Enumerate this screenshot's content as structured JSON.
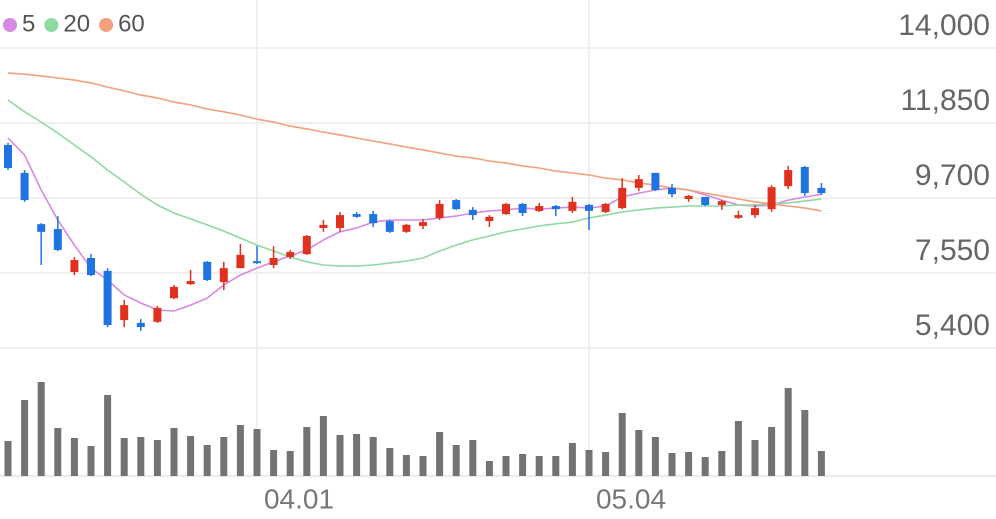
{
  "chart_data": {
    "type": "candlestick",
    "categories": [
      null,
      null,
      null,
      null,
      null,
      null,
      null,
      null,
      null,
      null,
      null,
      null,
      null,
      null,
      null,
      "04.01",
      null,
      null,
      null,
      null,
      null,
      null,
      null,
      null,
      null,
      null,
      null,
      null,
      null,
      null,
      null,
      null,
      null,
      null,
      null,
      "05.04",
      null,
      null,
      null,
      null,
      null,
      null,
      null,
      null,
      null,
      null,
      null,
      null,
      null,
      null
    ],
    "open": [
      11220,
      10420,
      8950,
      8810,
      7580,
      7980,
      7610,
      6200,
      6120,
      6150,
      6830,
      7230,
      7870,
      7290,
      7690,
      7890,
      7780,
      8010,
      8090,
      8840,
      8840,
      9240,
      9240,
      9040,
      8730,
      8900,
      9130,
      9640,
      9360,
      9040,
      9240,
      9530,
      9330,
      9470,
      9330,
      9500,
      9300,
      9410,
      9990,
      10420,
      9990,
      9670,
      9730,
      9500,
      9130,
      9210,
      9380,
      10040,
      10590,
      9990
    ],
    "high": [
      11280,
      10500,
      8980,
      9180,
      8010,
      8100,
      7690,
      6780,
      6230,
      6610,
      7210,
      7640,
      7890,
      7870,
      8380,
      8320,
      8320,
      8210,
      8640,
      9070,
      9300,
      9300,
      9330,
      9070,
      8960,
      9100,
      9640,
      9670,
      9440,
      9210,
      9560,
      9560,
      9560,
      9500,
      9730,
      9530,
      9560,
      10270,
      10360,
      10420,
      10100,
      9790,
      9730,
      9640,
      9330,
      9500,
      10070,
      10620,
      10620,
      10130
    ],
    "low": [
      10500,
      9590,
      7780,
      8180,
      7490,
      7460,
      6000,
      6000,
      5890,
      6120,
      6800,
      7210,
      7320,
      7060,
      7690,
      7810,
      7690,
      7950,
      8070,
      8730,
      8730,
      9130,
      8870,
      8700,
      8700,
      8810,
      9070,
      9360,
      9070,
      8870,
      9210,
      9180,
      9300,
      9180,
      9270,
      8780,
      9270,
      9380,
      9900,
      9900,
      9730,
      9590,
      9470,
      9360,
      9100,
      9130,
      9300,
      9960,
      9760,
      9790
    ],
    "close": [
      10560,
      9640,
      8730,
      8210,
      7920,
      7490,
      6060,
      6630,
      6000,
      6550,
      7150,
      7320,
      7350,
      7690,
      8070,
      7840,
      7980,
      8150,
      8610,
      8930,
      9210,
      9160,
      8980,
      8730,
      8930,
      9010,
      9530,
      9380,
      9210,
      9160,
      9530,
      9270,
      9470,
      9380,
      9590,
      9330,
      9530,
      9990,
      10240,
      9930,
      9810,
      9760,
      9500,
      9610,
      9210,
      9410,
      10010,
      10500,
      9840,
      9840
    ],
    "volume": [
      35,
      76,
      94,
      48,
      38,
      30,
      81,
      38,
      39,
      36,
      48,
      40,
      31,
      39,
      51,
      47,
      26,
      25,
      49,
      60,
      41,
      42,
      39,
      28,
      21,
      20,
      44,
      31,
      36,
      15,
      20,
      22,
      20,
      20,
      33,
      26,
      24,
      63,
      46,
      39,
      23,
      24,
      19,
      25,
      55,
      36,
      49,
      88,
      66,
      25
    ],
    "up_color": "#e0301e",
    "down_color": "#1e74e0",
    "volume_color": "#737373",
    "series": [
      {
        "name": "5",
        "color": "#d68ae3",
        "values": [
          11420,
          10930,
          9930,
          9070,
          8350,
          7690,
          7350,
          6920,
          6690,
          6490,
          6460,
          6630,
          6830,
          7210,
          7490,
          7690,
          7870,
          8040,
          8210,
          8500,
          8730,
          8840,
          9010,
          9070,
          9070,
          9070,
          9130,
          9180,
          9270,
          9330,
          9360,
          9410,
          9380,
          9410,
          9440,
          9410,
          9470,
          9730,
          9840,
          9930,
          9990,
          9930,
          9790,
          9640,
          9500,
          9470,
          9500,
          9640,
          9730,
          9810
        ]
      },
      {
        "name": "20",
        "color": "#8fd9a2",
        "values": [
          12510,
          12170,
          11880,
          11560,
          11220,
          10880,
          10500,
          10160,
          9810,
          9500,
          9270,
          9100,
          8930,
          8750,
          8550,
          8350,
          8180,
          8010,
          7870,
          7780,
          7750,
          7750,
          7780,
          7840,
          7890,
          7980,
          8180,
          8350,
          8500,
          8610,
          8730,
          8810,
          8900,
          8960,
          9010,
          9130,
          9210,
          9300,
          9360,
          9410,
          9440,
          9470,
          9470,
          9470,
          9500,
          9500,
          9530,
          9560,
          9610,
          9670
        ]
      },
      {
        "name": "60",
        "color": "#f3a07c",
        "values": [
          13280,
          13250,
          13200,
          13140,
          13080,
          13000,
          12880,
          12770,
          12650,
          12570,
          12450,
          12370,
          12250,
          12170,
          12080,
          11960,
          11880,
          11760,
          11680,
          11590,
          11510,
          11420,
          11330,
          11250,
          11160,
          11080,
          10990,
          10900,
          10850,
          10760,
          10700,
          10620,
          10560,
          10470,
          10420,
          10360,
          10270,
          10220,
          10130,
          10070,
          9990,
          9930,
          9840,
          9760,
          9670,
          9590,
          9530,
          9470,
          9410,
          9330
        ]
      }
    ],
    "ylim": [
      5400,
      14000
    ],
    "yticks": [
      {
        "value": 5400,
        "label": "5,400"
      },
      {
        "value": 7550,
        "label": "7,550"
      },
      {
        "value": 9700,
        "label": "9,700"
      },
      {
        "value": 11850,
        "label": "11,850"
      },
      {
        "value": 14000,
        "label": "14,000"
      }
    ],
    "grid": true
  }
}
